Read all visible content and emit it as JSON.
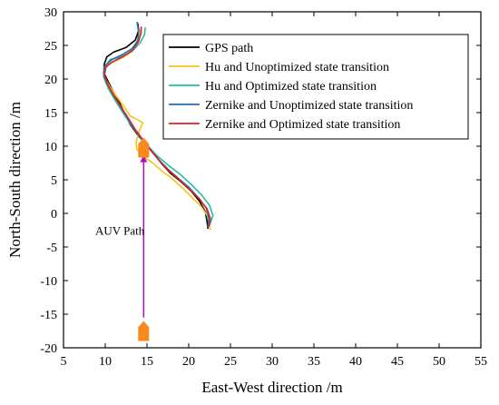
{
  "chart_data": {
    "type": "line",
    "xlabel": "East-West direction /m",
    "ylabel": "North-South direction /m",
    "xlim": [
      5,
      55
    ],
    "ylim": [
      -20,
      30
    ],
    "xticks": [
      5,
      10,
      15,
      20,
      25,
      30,
      35,
      40,
      45,
      50,
      55
    ],
    "yticks": [
      -20,
      -15,
      -10,
      -5,
      0,
      5,
      10,
      15,
      20,
      25,
      30
    ],
    "grid": false,
    "legend_position": "top-right",
    "series": [
      {
        "name": "GPS path",
        "color": "#000000",
        "points": [
          [
            22.3,
            -2.3
          ],
          [
            22.2,
            -1.2
          ],
          [
            22.0,
            0.2
          ],
          [
            21.3,
            1.8
          ],
          [
            20.3,
            3.3
          ],
          [
            19.0,
            4.8
          ],
          [
            17.8,
            6.0
          ],
          [
            16.7,
            7.5
          ],
          [
            15.8,
            9.0
          ],
          [
            14.8,
            10.5
          ],
          [
            14.0,
            11.5
          ],
          [
            13.0,
            13.2
          ],
          [
            12.2,
            15.2
          ],
          [
            11.5,
            17.0
          ],
          [
            10.8,
            18.5
          ],
          [
            10.2,
            20.0
          ],
          [
            9.8,
            21.0
          ],
          [
            9.9,
            22.3
          ],
          [
            10.2,
            23.3
          ],
          [
            11.0,
            24.0
          ],
          [
            12.5,
            24.7
          ],
          [
            13.6,
            25.8
          ],
          [
            14.0,
            27.2
          ],
          [
            13.9,
            28.3
          ]
        ]
      },
      {
        "name": "Hu and Unoptimized state transition",
        "color": "#f5c518",
        "points": [
          [
            22.6,
            -2.5
          ],
          [
            22.3,
            -0.5
          ],
          [
            21.5,
            1.0
          ],
          [
            20.3,
            2.5
          ],
          [
            19.3,
            3.7
          ],
          [
            18.0,
            5.2
          ],
          [
            16.8,
            6.3
          ],
          [
            15.6,
            7.6
          ],
          [
            14.5,
            8.5
          ],
          [
            13.8,
            9.5
          ],
          [
            13.7,
            10.5
          ],
          [
            14.0,
            12.0
          ],
          [
            14.5,
            13.5
          ],
          [
            14.1,
            13.8
          ],
          [
            13.0,
            14.5
          ],
          [
            12.2,
            16.0
          ],
          [
            11.3,
            17.5
          ],
          [
            10.5,
            19.0
          ],
          [
            9.9,
            20.3
          ],
          [
            9.8,
            21.3
          ],
          [
            10.4,
            22.2
          ],
          [
            11.6,
            22.9
          ],
          [
            12.8,
            23.7
          ],
          [
            13.6,
            25.0
          ],
          [
            14.0,
            26.3
          ],
          [
            14.2,
            27.5
          ]
        ]
      },
      {
        "name": "Hu and Optimized state transition",
        "color": "#20c0a0",
        "points": [
          [
            22.5,
            -1.8
          ],
          [
            22.9,
            -0.3
          ],
          [
            22.5,
            1.2
          ],
          [
            21.5,
            2.8
          ],
          [
            20.3,
            4.3
          ],
          [
            19.0,
            5.8
          ],
          [
            17.5,
            7.2
          ],
          [
            16.2,
            8.6
          ],
          [
            15.0,
            10.2
          ],
          [
            13.9,
            11.8
          ],
          [
            12.9,
            13.5
          ],
          [
            12.0,
            15.2
          ],
          [
            11.2,
            16.8
          ],
          [
            10.4,
            18.5
          ],
          [
            9.8,
            20.3
          ],
          [
            9.9,
            21.8
          ],
          [
            10.6,
            22.9
          ],
          [
            11.9,
            23.3
          ],
          [
            13.2,
            24.1
          ],
          [
            14.2,
            25.4
          ],
          [
            14.7,
            26.6
          ],
          [
            14.8,
            27.7
          ]
        ]
      },
      {
        "name": "Zernike and Unoptimized state transition",
        "color": "#1f6fb4",
        "points": [
          [
            22.3,
            -2.1
          ],
          [
            22.4,
            -0.7
          ],
          [
            22.1,
            0.8
          ],
          [
            21.2,
            2.3
          ],
          [
            20.0,
            3.9
          ],
          [
            18.7,
            5.3
          ],
          [
            17.5,
            6.6
          ],
          [
            16.4,
            8.0
          ],
          [
            15.4,
            9.5
          ],
          [
            14.4,
            11.0
          ],
          [
            13.4,
            12.7
          ],
          [
            12.5,
            14.5
          ],
          [
            11.7,
            16.2
          ],
          [
            10.9,
            17.8
          ],
          [
            10.2,
            19.4
          ],
          [
            9.8,
            20.8
          ],
          [
            10.0,
            22.0
          ],
          [
            10.8,
            22.9
          ],
          [
            12.0,
            23.6
          ],
          [
            13.2,
            24.5
          ],
          [
            13.9,
            25.7
          ],
          [
            14.0,
            27.0
          ],
          [
            13.8,
            28.5
          ]
        ]
      },
      {
        "name": "Zernike and Optimized state transition",
        "color": "#e0202a",
        "points": [
          [
            22.4,
            -2.0
          ],
          [
            22.6,
            -0.8
          ],
          [
            22.2,
            0.7
          ],
          [
            21.3,
            2.1
          ],
          [
            20.1,
            3.6
          ],
          [
            18.8,
            5.1
          ],
          [
            17.6,
            6.4
          ],
          [
            16.5,
            7.8
          ],
          [
            15.5,
            9.3
          ],
          [
            14.6,
            10.8
          ],
          [
            13.6,
            12.5
          ],
          [
            12.7,
            14.3
          ],
          [
            11.8,
            16.0
          ],
          [
            11.0,
            17.6
          ],
          [
            10.3,
            19.2
          ],
          [
            9.9,
            20.6
          ],
          [
            10.1,
            21.8
          ],
          [
            10.9,
            22.6
          ],
          [
            12.1,
            23.3
          ],
          [
            13.3,
            24.3
          ],
          [
            14.0,
            25.6
          ],
          [
            14.3,
            26.9
          ],
          [
            14.3,
            27.8
          ]
        ]
      }
    ],
    "annotations": [
      {
        "type": "arrow",
        "color": "#b010c0",
        "from": [
          14.6,
          -15.5
        ],
        "to": [
          14.6,
          8.7
        ]
      },
      {
        "type": "marker",
        "shape": "boat",
        "color": "#f7891e",
        "at": [
          14.6,
          9.8
        ]
      },
      {
        "type": "marker",
        "shape": "boat",
        "color": "#f7891e",
        "at": [
          14.6,
          -17.5
        ]
      },
      {
        "type": "text",
        "text": "AUV Path",
        "at": [
          8.8,
          -3.2
        ]
      }
    ]
  }
}
